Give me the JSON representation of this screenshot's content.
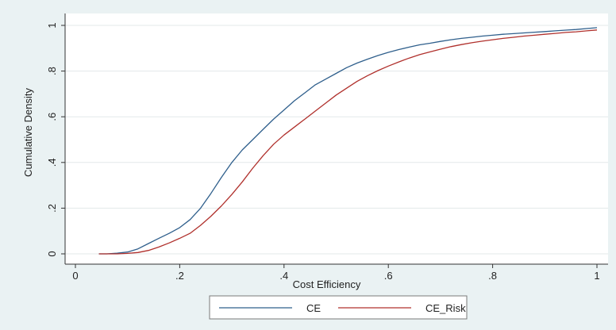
{
  "chart_data": {
    "type": "line",
    "title": "",
    "xlabel": "Cost Efficiency",
    "ylabel": "Cumulative Density",
    "xlim": [
      0,
      1
    ],
    "ylim": [
      0,
      1
    ],
    "x_ticks": [
      0,
      0.2,
      0.4,
      0.6,
      0.8,
      1
    ],
    "x_tick_labels": [
      "0",
      ".2",
      ".4",
      ".6",
      ".8",
      "1"
    ],
    "y_ticks": [
      0,
      0.2,
      0.4,
      0.6,
      0.8,
      1
    ],
    "y_tick_labels": [
      "0",
      ".2",
      ".4",
      ".6",
      ".8",
      "1"
    ],
    "grid": "horizontal",
    "legend_placement": "bottom",
    "series": [
      {
        "name": "CE",
        "color": "#2f5f8c",
        "x": [
          0.045,
          0.06,
          0.08,
          0.1,
          0.12,
          0.14,
          0.16,
          0.18,
          0.2,
          0.22,
          0.24,
          0.26,
          0.28,
          0.3,
          0.32,
          0.34,
          0.36,
          0.38,
          0.4,
          0.42,
          0.44,
          0.46,
          0.48,
          0.5,
          0.52,
          0.54,
          0.56,
          0.58,
          0.6,
          0.62,
          0.64,
          0.66,
          0.68,
          0.7,
          0.72,
          0.74,
          0.76,
          0.78,
          0.8,
          0.82,
          0.84,
          0.86,
          0.88,
          0.9,
          0.92,
          0.94,
          0.96,
          0.98,
          1.0
        ],
        "y": [
          0.0,
          0.0,
          0.003,
          0.008,
          0.022,
          0.045,
          0.068,
          0.09,
          0.115,
          0.15,
          0.2,
          0.265,
          0.335,
          0.4,
          0.455,
          0.5,
          0.545,
          0.59,
          0.63,
          0.67,
          0.705,
          0.74,
          0.765,
          0.79,
          0.815,
          0.835,
          0.852,
          0.868,
          0.882,
          0.894,
          0.905,
          0.915,
          0.922,
          0.93,
          0.937,
          0.943,
          0.948,
          0.953,
          0.957,
          0.961,
          0.964,
          0.967,
          0.97,
          0.973,
          0.976,
          0.979,
          0.982,
          0.986,
          0.99
        ]
      },
      {
        "name": "CE_Risk",
        "color": "#b0302c",
        "x": [
          0.045,
          0.06,
          0.08,
          0.1,
          0.12,
          0.14,
          0.16,
          0.18,
          0.2,
          0.22,
          0.24,
          0.26,
          0.28,
          0.3,
          0.32,
          0.34,
          0.36,
          0.38,
          0.4,
          0.42,
          0.44,
          0.46,
          0.48,
          0.5,
          0.52,
          0.54,
          0.56,
          0.58,
          0.6,
          0.62,
          0.64,
          0.66,
          0.68,
          0.7,
          0.72,
          0.74,
          0.76,
          0.78,
          0.8,
          0.82,
          0.84,
          0.86,
          0.88,
          0.9,
          0.92,
          0.94,
          0.96,
          0.98,
          1.0
        ],
        "y": [
          0.0,
          0.0,
          0.0,
          0.002,
          0.006,
          0.015,
          0.03,
          0.048,
          0.068,
          0.09,
          0.125,
          0.165,
          0.21,
          0.26,
          0.315,
          0.375,
          0.43,
          0.48,
          0.52,
          0.555,
          0.59,
          0.625,
          0.66,
          0.695,
          0.725,
          0.755,
          0.78,
          0.802,
          0.822,
          0.84,
          0.857,
          0.872,
          0.884,
          0.896,
          0.907,
          0.916,
          0.924,
          0.931,
          0.937,
          0.943,
          0.948,
          0.953,
          0.957,
          0.961,
          0.965,
          0.969,
          0.972,
          0.976,
          0.98
        ]
      }
    ]
  }
}
